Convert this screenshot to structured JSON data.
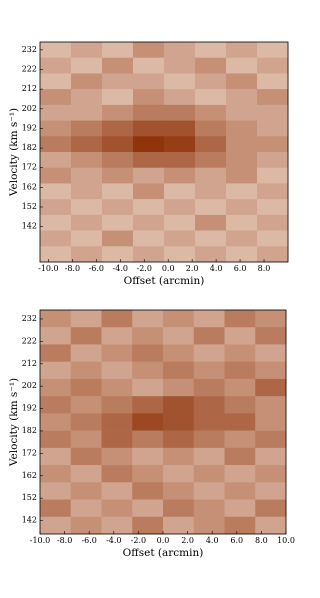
{
  "chart_data": [
    {
      "type": "heatmap",
      "xlabel": "Offset (arcmin)",
      "ylabel": "Velocity (km s⁻¹)",
      "xlim": [
        -10.7,
        10
      ],
      "ylim": [
        124,
        236
      ],
      "xticks": [
        {
          "value": -10,
          "label": "-10.0"
        },
        {
          "value": -8,
          "label": "-8.0"
        },
        {
          "value": -6,
          "label": "-6.0"
        },
        {
          "value": -4,
          "label": "-4.0"
        },
        {
          "value": -2,
          "label": "-2.0"
        },
        {
          "value": 0,
          "label": "0.0"
        },
        {
          "value": 2,
          "label": "2.0"
        },
        {
          "value": 4,
          "label": "4.0"
        },
        {
          "value": 6,
          "label": "6.0"
        },
        {
          "value": 8,
          "label": "8.0"
        }
      ],
      "yticks": [
        142,
        152,
        162,
        172,
        182,
        192,
        202,
        212,
        222,
        232
      ],
      "zlim": [
        0,
        1
      ],
      "colormap": [
        "#fff6ec",
        "#8a2a00"
      ],
      "z": [
        [
          0.3,
          0.4,
          0.3,
          0.5,
          0.4,
          0.3,
          0.4,
          0.3
        ],
        [
          0.4,
          0.3,
          0.5,
          0.3,
          0.4,
          0.5,
          0.3,
          0.4
        ],
        [
          0.3,
          0.5,
          0.4,
          0.4,
          0.3,
          0.4,
          0.5,
          0.3
        ],
        [
          0.5,
          0.4,
          0.3,
          0.5,
          0.4,
          0.3,
          0.4,
          0.5
        ],
        [
          0.4,
          0.4,
          0.5,
          0.6,
          0.6,
          0.5,
          0.4,
          0.4
        ],
        [
          0.5,
          0.6,
          0.7,
          0.8,
          0.8,
          0.6,
          0.5,
          0.4
        ],
        [
          0.6,
          0.7,
          0.8,
          0.95,
          0.9,
          0.7,
          0.5,
          0.5
        ],
        [
          0.4,
          0.5,
          0.6,
          0.7,
          0.7,
          0.6,
          0.5,
          0.4
        ],
        [
          0.5,
          0.4,
          0.5,
          0.4,
          0.5,
          0.4,
          0.5,
          0.3
        ],
        [
          0.3,
          0.4,
          0.3,
          0.5,
          0.3,
          0.4,
          0.3,
          0.4
        ],
        [
          0.4,
          0.3,
          0.4,
          0.3,
          0.4,
          0.3,
          0.4,
          0.3
        ],
        [
          0.3,
          0.4,
          0.3,
          0.4,
          0.3,
          0.5,
          0.3,
          0.4
        ],
        [
          0.4,
          0.3,
          0.5,
          0.3,
          0.4,
          0.3,
          0.4,
          0.3
        ],
        [
          0.3,
          0.4,
          0.3,
          0.4,
          0.3,
          0.4,
          0.3,
          0.4
        ]
      ]
    },
    {
      "type": "heatmap",
      "xlabel": "Offset (arcmin)",
      "ylabel": "Velocity (km s⁻¹)",
      "xlim": [
        -10,
        10
      ],
      "ylim": [
        136,
        236
      ],
      "xticks": [
        {
          "value": -10,
          "label": "-10.0"
        },
        {
          "value": -8,
          "label": "-8.0"
        },
        {
          "value": -6,
          "label": "-6.0"
        },
        {
          "value": -4,
          "label": "-4.0"
        },
        {
          "value": -2,
          "label": "-2.0"
        },
        {
          "value": 0,
          "label": "0.0"
        },
        {
          "value": 2,
          "label": "2.0"
        },
        {
          "value": 4,
          "label": "4.0"
        },
        {
          "value": 6,
          "label": "6.0"
        },
        {
          "value": 8,
          "label": "8.0"
        },
        {
          "value": 10,
          "label": "10.0"
        }
      ],
      "yticks": [
        142,
        152,
        162,
        172,
        182,
        192,
        202,
        212,
        222,
        232
      ],
      "zlim": [
        0,
        1
      ],
      "colormap": [
        "#fff6ec",
        "#8a2a00"
      ],
      "z": [
        [
          0.5,
          0.4,
          0.6,
          0.4,
          0.5,
          0.4,
          0.6,
          0.5
        ],
        [
          0.4,
          0.6,
          0.4,
          0.5,
          0.4,
          0.6,
          0.4,
          0.6
        ],
        [
          0.6,
          0.4,
          0.5,
          0.6,
          0.5,
          0.4,
          0.5,
          0.4
        ],
        [
          0.4,
          0.5,
          0.4,
          0.5,
          0.6,
          0.5,
          0.6,
          0.5
        ],
        [
          0.5,
          0.6,
          0.5,
          0.4,
          0.5,
          0.6,
          0.5,
          0.7
        ],
        [
          0.6,
          0.5,
          0.6,
          0.7,
          0.8,
          0.7,
          0.6,
          0.5
        ],
        [
          0.5,
          0.6,
          0.7,
          0.85,
          0.8,
          0.7,
          0.7,
          0.5
        ],
        [
          0.6,
          0.5,
          0.7,
          0.6,
          0.7,
          0.6,
          0.5,
          0.6
        ],
        [
          0.4,
          0.6,
          0.5,
          0.4,
          0.5,
          0.4,
          0.6,
          0.4
        ],
        [
          0.5,
          0.4,
          0.6,
          0.5,
          0.4,
          0.5,
          0.4,
          0.5
        ],
        [
          0.4,
          0.5,
          0.4,
          0.6,
          0.5,
          0.4,
          0.5,
          0.4
        ],
        [
          0.6,
          0.4,
          0.5,
          0.4,
          0.6,
          0.5,
          0.4,
          0.6
        ],
        [
          0.4,
          0.5,
          0.4,
          0.6,
          0.4,
          0.5,
          0.6,
          0.4
        ]
      ]
    }
  ]
}
